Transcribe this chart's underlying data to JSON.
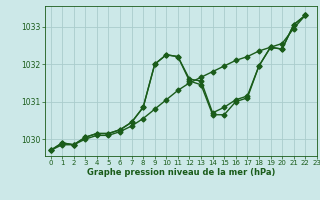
{
  "title": "Graphe pression niveau de la mer (hPa)",
  "background_color": "#cce8e8",
  "grid_color": "#aacccc",
  "line_color": "#1a5c1a",
  "xlim": [
    -0.5,
    23
  ],
  "ylim": [
    1029.55,
    1033.55
  ],
  "yticks": [
    1030,
    1031,
    1032,
    1033
  ],
  "xticks": [
    0,
    1,
    2,
    3,
    4,
    5,
    6,
    7,
    8,
    9,
    10,
    11,
    12,
    13,
    14,
    15,
    16,
    17,
    18,
    19,
    20,
    21,
    22,
    23
  ],
  "series1": [
    1029.7,
    1029.9,
    1029.85,
    1030.05,
    1030.15,
    1030.15,
    1030.25,
    1030.45,
    1030.85,
    1032.0,
    1032.25,
    1032.2,
    1031.6,
    1031.55,
    1030.7,
    1030.85,
    1031.05,
    1031.15,
    1031.95,
    1032.45,
    1032.4,
    1033.05,
    1033.3
  ],
  "series2": [
    1029.7,
    1029.9,
    1029.85,
    1030.05,
    1030.15,
    1030.15,
    1030.25,
    1030.45,
    1030.85,
    1032.0,
    1032.25,
    1032.2,
    1031.55,
    1031.45,
    1030.65,
    1030.65,
    1031.0,
    1031.1,
    1031.95,
    1032.45,
    1032.4,
    1033.05,
    1033.3
  ],
  "series3": [
    1029.7,
    1029.85,
    1029.85,
    1030.0,
    1030.1,
    1030.1,
    1030.2,
    1030.35,
    1030.55,
    1030.8,
    1031.05,
    1031.3,
    1031.5,
    1031.65,
    1031.8,
    1031.95,
    1032.1,
    1032.2,
    1032.35,
    1032.45,
    1032.55,
    1032.95,
    1033.3
  ],
  "marker": "D",
  "markersize": 2.5,
  "linewidth": 1.0,
  "title_fontsize": 6.0,
  "tick_fontsize": 5.0
}
